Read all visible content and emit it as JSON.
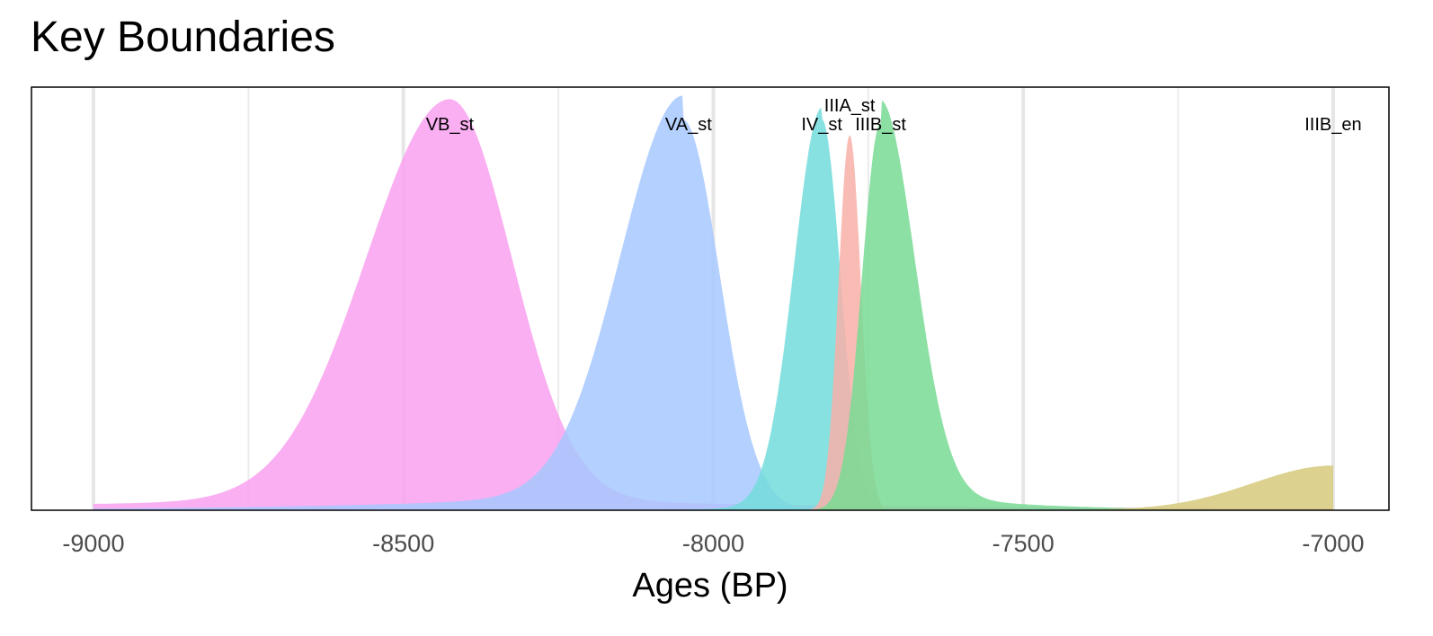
{
  "chart_data": {
    "type": "area",
    "title": "Key Boundaries",
    "xlabel": "Ages (BP)",
    "ylabel": "",
    "xlim": [
      -9100,
      -6910
    ],
    "ylim": [
      0,
      1.06
    ],
    "x_ticks": [
      -9000,
      -8500,
      -8000,
      -7500,
      -7000
    ],
    "x_tick_labels": [
      "-9000",
      "-8500",
      "-8000",
      "-7500",
      "-7000"
    ],
    "minor_grid": [
      -8750,
      -8250,
      -7750,
      -7250
    ],
    "grid": true,
    "legend": "none",
    "series": [
      {
        "name": "VB_st",
        "color": "#f8a1ee",
        "peak": -8425,
        "height": 1.0,
        "sigma_left": 135,
        "sigma_right": 100,
        "tail_left": 0.03,
        "tail_left_scale": 900,
        "tail_right": 0.03,
        "tail_right_scale": 700,
        "x_min": -9000,
        "x_max": -7000
      },
      {
        "name": "VA_st",
        "color": "#a7c8ff",
        "peak": -8050,
        "height": 0.98,
        "sigma_left": 100,
        "sigma_right": 60,
        "tail_left": 0.06,
        "tail_left_scale": 350,
        "tail_right": 0.0,
        "tail_right_scale": 100,
        "x_min": -9000,
        "x_max": -7000
      },
      {
        "name": "IV_st",
        "color": "#73dcdc",
        "peak": -7825,
        "height": 0.98,
        "sigma_left": 45,
        "sigma_right": 30,
        "tail_left": 0.03,
        "tail_left_scale": 80,
        "tail_right": 0.0,
        "tail_right_scale": 50,
        "x_min": -9000,
        "x_max": -7000
      },
      {
        "name": "IIIA_st",
        "color": "#f8b0a8",
        "peak": -7780,
        "height": 0.94,
        "sigma_left": 18,
        "sigma_right": 18,
        "tail_left": 0.0,
        "tail_left_scale": 50,
        "tail_right": 0.0,
        "tail_right_scale": 50,
        "x_min": -9000,
        "x_max": -7000
      },
      {
        "name": "IIIB_st",
        "color": "#78db94",
        "peak": -7730,
        "height": 0.97,
        "sigma_left": 30,
        "sigma_right": 55,
        "tail_left": 0.0,
        "tail_left_scale": 50,
        "tail_right": 0.06,
        "tail_right_scale": 170,
        "x_min": -9000,
        "x_max": -7000
      },
      {
        "name": "IIIB_en",
        "color": "#d6c97a",
        "peak": -7000,
        "height": 0.11,
        "sigma_left": 130,
        "sigma_right": 10,
        "tail_left": 0.02,
        "tail_left_scale": 180,
        "tail_right": 0.0,
        "tail_right_scale": 10,
        "x_min": -9000,
        "x_max": -7000
      }
    ],
    "labels": [
      {
        "text": "VB_st",
        "x": -8425,
        "row": 1
      },
      {
        "text": "VA_st",
        "x": -8040,
        "row": 1
      },
      {
        "text": "IV_st",
        "x": -7825,
        "row": 1
      },
      {
        "text": "IIIA_st",
        "x": -7780,
        "row": 0
      },
      {
        "text": "IIIB_st",
        "x": -7730,
        "row": 1
      },
      {
        "text": "IIIB_en",
        "x": -7000,
        "row": 1
      }
    ]
  }
}
